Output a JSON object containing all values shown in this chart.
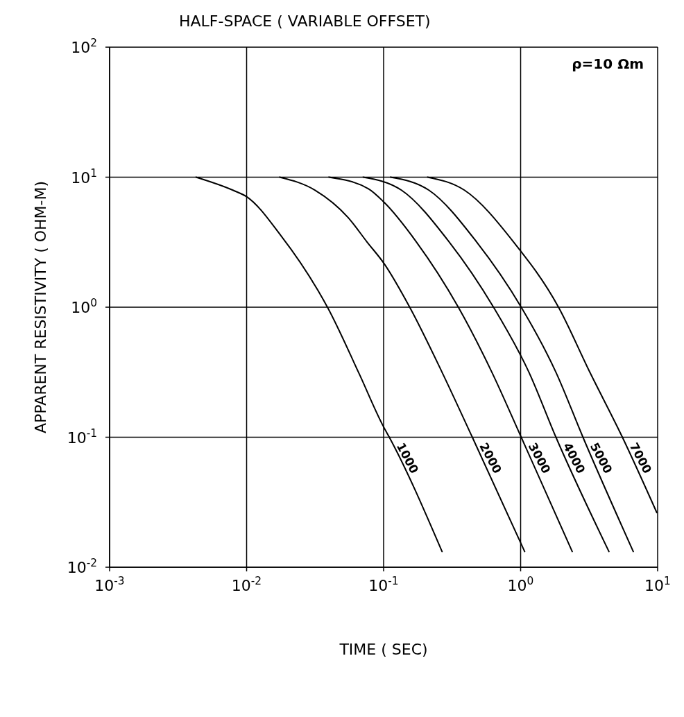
{
  "chart_data": {
    "type": "line",
    "title": "HALF-SPACE ( VARIABLE OFFSET)",
    "xlabel": "TIME ( SEC)",
    "ylabel": "APPARENT RESISTIVITY ( OHM-M)",
    "annotations": [
      "ρ=10 Ωm"
    ],
    "log": "xy",
    "grid": true,
    "xlim": [
      0.001,
      10
    ],
    "ylim": [
      0.01,
      100
    ],
    "xticks": [
      {
        "value": 0.001,
        "label": "10$^{-3}$"
      },
      {
        "value": 0.01,
        "label": "10$^{-2}$"
      },
      {
        "value": 0.1,
        "label": "10$^{-1}$"
      },
      {
        "value": 1,
        "label": "10$^{0}$"
      },
      {
        "value": 10,
        "label": "10$^{1}$"
      }
    ],
    "yticks": [
      {
        "value": 0.01,
        "label": "10$^{-2}$"
      },
      {
        "value": 0.1,
        "label": "10$^{-1}$"
      },
      {
        "value": 1,
        "label": "10$^{0}$"
      },
      {
        "value": 10,
        "label": "10$^{1}$"
      },
      {
        "value": 100,
        "label": "10$^{2}$"
      }
    ],
    "series": [
      {
        "name": "1000",
        "color": "#000000",
        "x": [
          0.00427,
          0.00794,
          0.01,
          0.0178,
          0.0331,
          0.0389,
          0.0661,
          0.1,
          0.11,
          0.267
        ],
        "values": [
          10,
          7.94,
          7.08,
          3.55,
          1.35,
          1,
          0.31,
          0.12,
          0.1,
          0.0132
        ]
      },
      {
        "name": "2000",
        "color": "#000000",
        "x": [
          0.0174,
          0.0316,
          0.055,
          0.0759,
          0.1,
          0.155,
          0.267,
          0.444,
          1.07
        ],
        "values": [
          10,
          7.94,
          4.9,
          3.16,
          2.19,
          1,
          0.316,
          0.1,
          0.0132
        ]
      },
      {
        "name": "3000",
        "color": "#000000",
        "x": [
          0.0398,
          0.0776,
          0.1,
          0.174,
          0.351,
          0.617,
          1.01,
          2.38
        ],
        "values": [
          10,
          8.13,
          6.46,
          3.16,
          1,
          0.316,
          0.1,
          0.0132
        ]
      },
      {
        "name": "4000",
        "color": "#000000",
        "x": [
          0.0708,
          0.135,
          0.302,
          0.634,
          1.15,
          1.81,
          4.41
        ],
        "values": [
          10,
          7.94,
          3.16,
          1,
          0.316,
          0.1,
          0.0132
        ]
      },
      {
        "name": "5000",
        "color": "#000000",
        "x": [
          0.112,
          0.214,
          0.479,
          1.01,
          1.81,
          2.85,
          6.64
        ],
        "values": [
          10,
          7.94,
          3.16,
          1,
          0.316,
          0.1,
          0.0132
        ]
      },
      {
        "name": "7000",
        "color": "#000000",
        "x": [
          0.209,
          0.389,
          0.891,
          1.89,
          3.2,
          5.53,
          9.86
        ],
        "values": [
          10,
          7.94,
          3.16,
          1,
          0.316,
          0.1,
          0.0263
        ]
      }
    ]
  }
}
